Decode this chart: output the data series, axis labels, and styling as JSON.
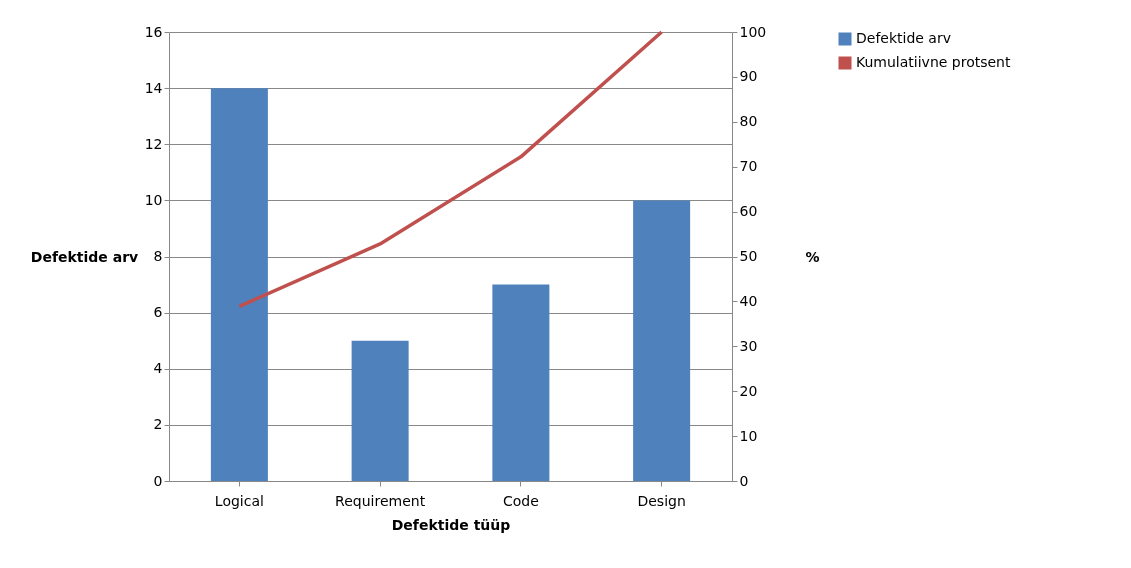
{
  "chart_data": {
    "type": "bar",
    "xlabel": "Defektide tüüp",
    "ylabel": "Defektide arv",
    "y2label": "%",
    "categories": [
      "Logical",
      "Requirement",
      "Code",
      "Design"
    ],
    "series": [
      {
        "name": "Defektide arv",
        "color": "#4f81bd",
        "values": [
          14,
          5,
          7,
          10
        ]
      },
      {
        "name": "Kumulatiivne protsent",
        "type": "line",
        "axis": "y2",
        "color": "#c0504d",
        "values": [
          38.9,
          52.8,
          72.2,
          100
        ]
      }
    ],
    "ylim": [
      0,
      16
    ],
    "yticks": [
      0,
      2,
      4,
      6,
      8,
      10,
      12,
      14,
      16
    ],
    "y2lim": [
      0,
      100
    ],
    "y2ticks": [
      0,
      10,
      20,
      30,
      40,
      50,
      60,
      70,
      80,
      90,
      100
    ],
    "grid": "y",
    "legend": "right",
    "marker": "none",
    "line_style": "solid"
  }
}
